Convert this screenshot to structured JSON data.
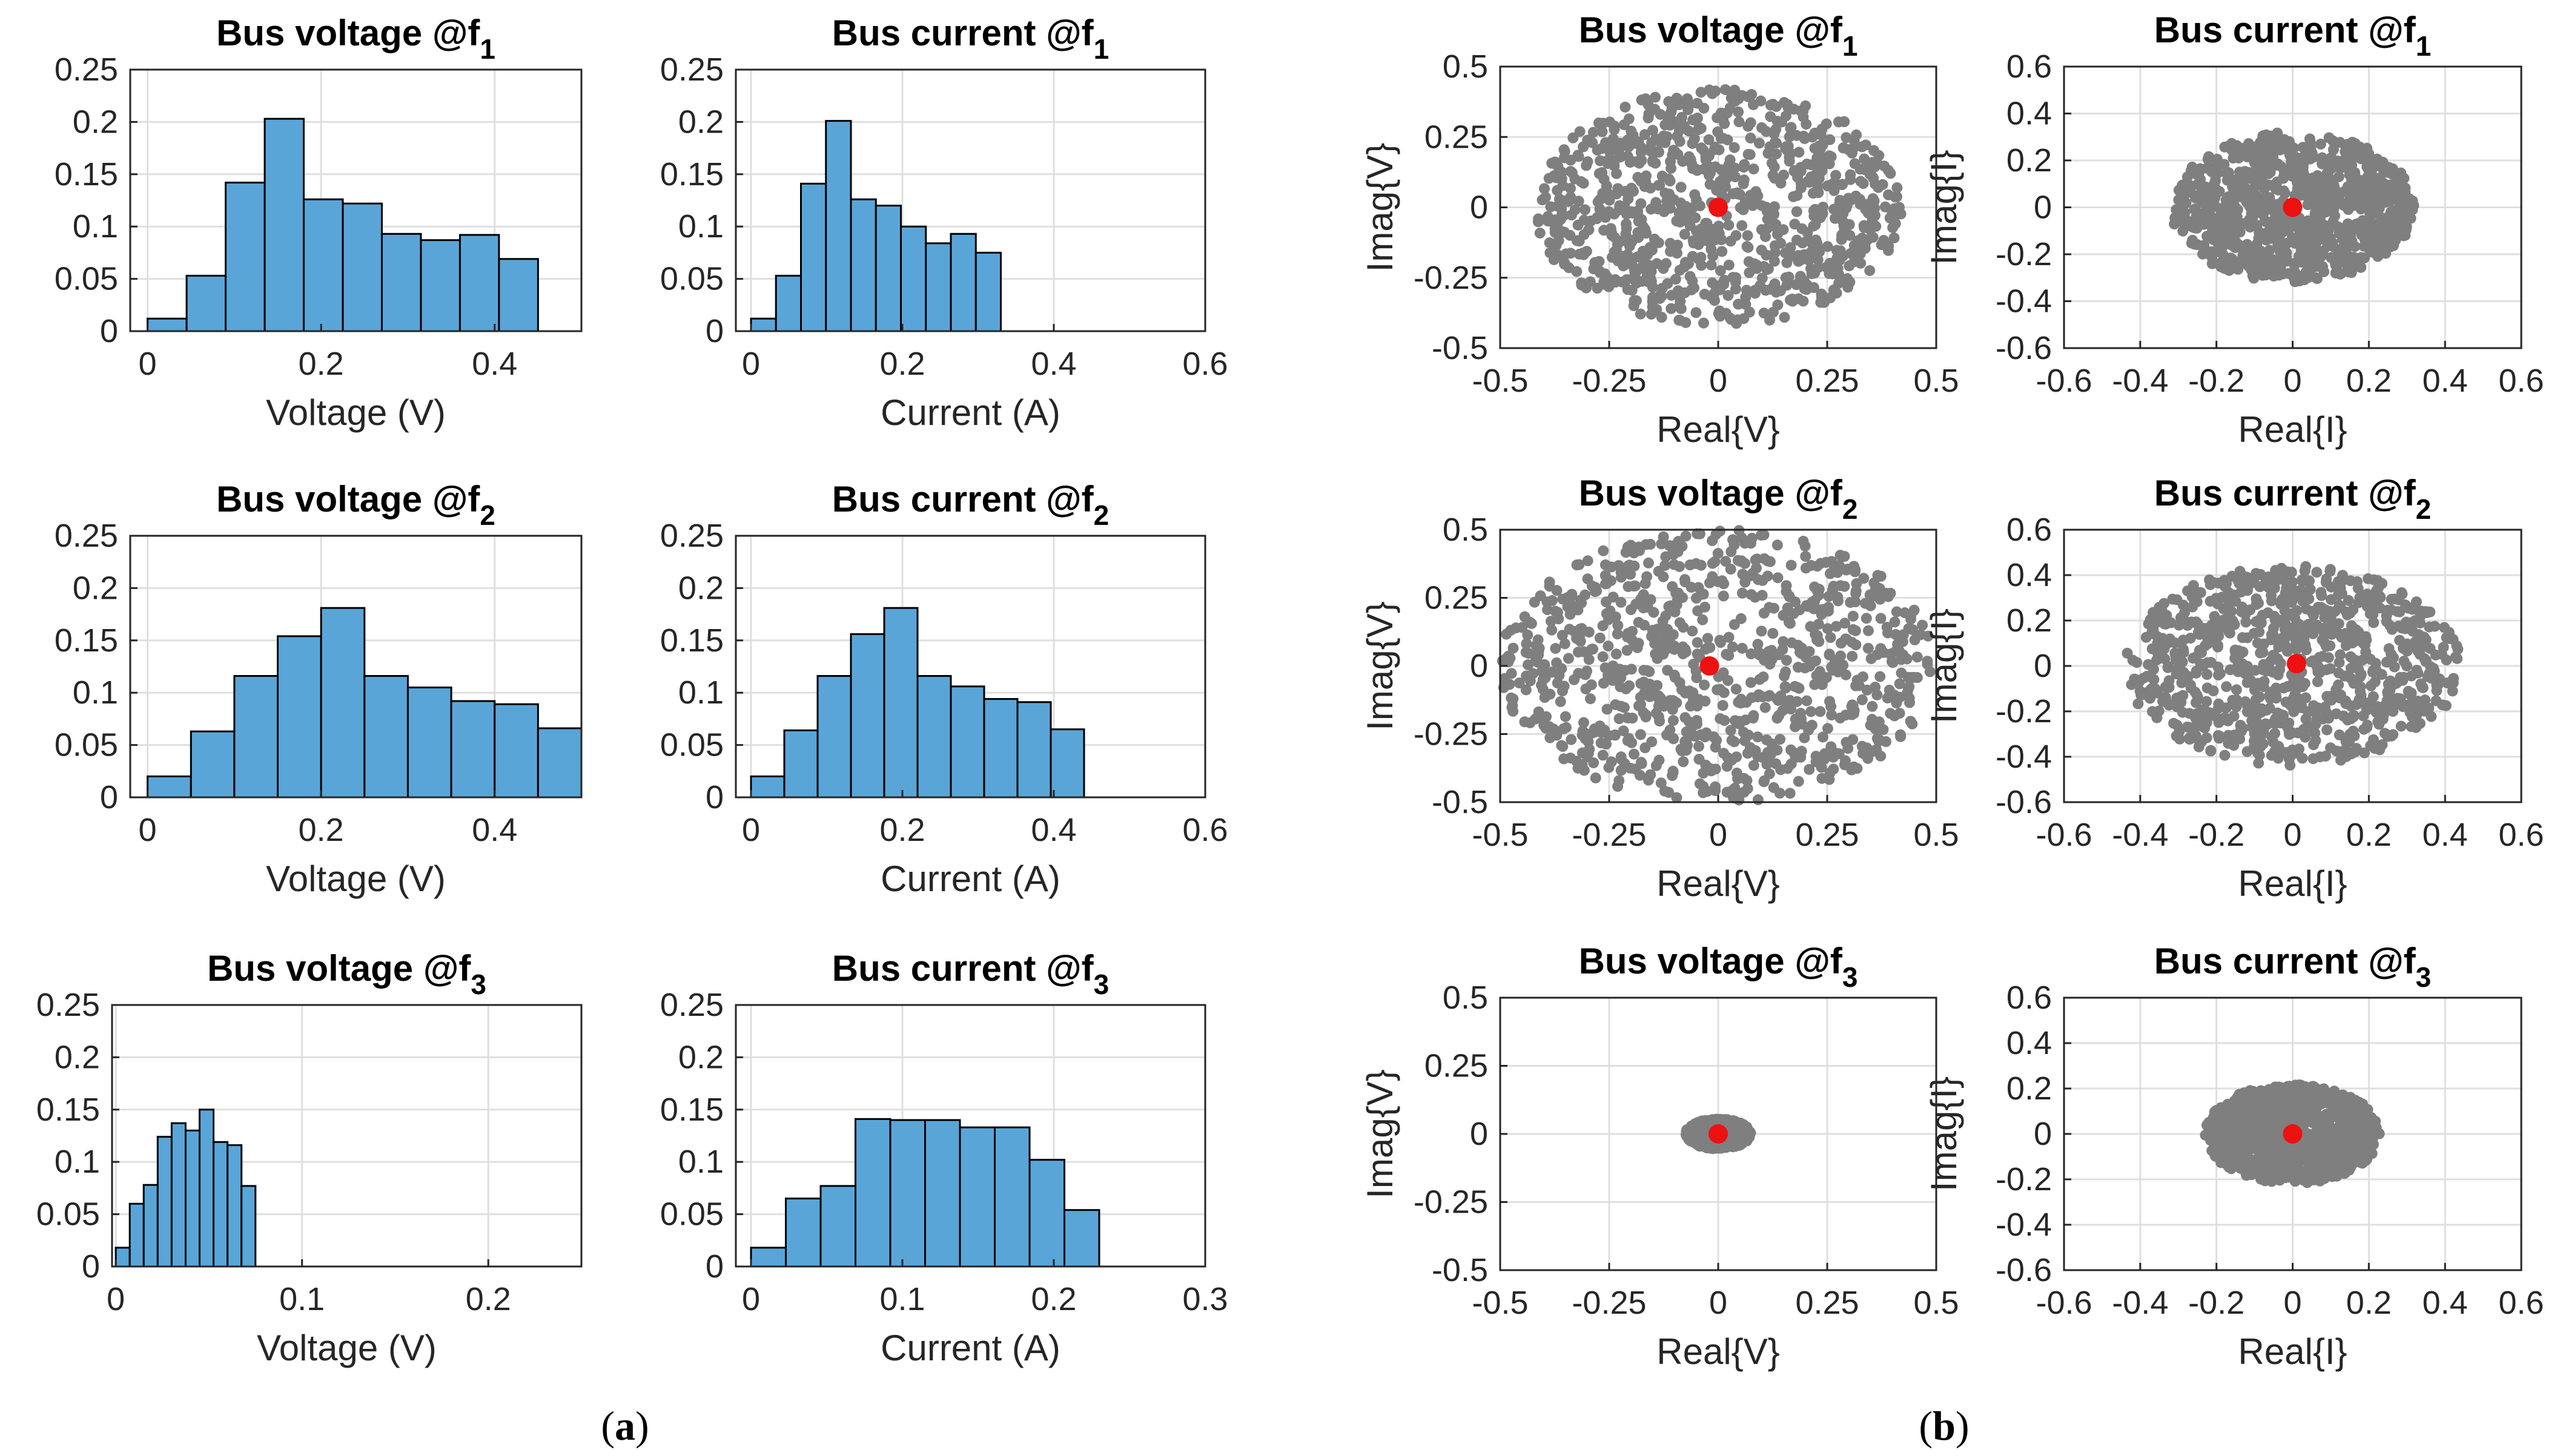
{
  "colors": {
    "bar_fill": "#5aa5d8",
    "bar_edge": "#000000",
    "scatter_point": "#7f7f7f",
    "centroid_point": "#ee1111",
    "axis": "#262626",
    "grid": "#dfdfdf"
  },
  "panel_labels": {
    "a": {
      "open": "(",
      "letter": "a",
      "close": ")"
    },
    "b": {
      "open": "(",
      "letter": "b",
      "close": ")"
    }
  },
  "chart_data": [
    {
      "id": "hist-voltage-f1",
      "type": "bar",
      "title": "Bus voltage @f",
      "title_sub": "1",
      "xlabel": "Voltage (V)",
      "ylabel": "",
      "xlim": [
        -0.02,
        0.5
      ],
      "ylim": [
        0,
        0.25
      ],
      "xticks": [
        0,
        0.2,
        0.4
      ],
      "xtick_labels": [
        "0",
        "0.2",
        "0.4"
      ],
      "yticks": [
        0,
        0.05,
        0.1,
        0.15,
        0.2,
        0.25
      ],
      "ytick_labels": [
        "0",
        "0.05",
        "0.1",
        "0.15",
        "0.2",
        "0.25"
      ],
      "bin_edges": [
        0,
        0.045,
        0.09,
        0.135,
        0.18,
        0.225,
        0.27,
        0.315,
        0.36,
        0.405,
        0.45
      ],
      "values": [
        0.012,
        0.053,
        0.142,
        0.203,
        0.126,
        0.122,
        0.093,
        0.087,
        0.092,
        0.069
      ]
    },
    {
      "id": "hist-current-f1",
      "type": "bar",
      "title": "Bus current @f",
      "title_sub": "1",
      "xlabel": "Current (A)",
      "ylabel": "",
      "xlim": [
        -0.02,
        0.6
      ],
      "ylim": [
        0,
        0.25
      ],
      "xticks": [
        0,
        0.2,
        0.4,
        0.6
      ],
      "xtick_labels": [
        "0",
        "0.2",
        "0.4",
        "0.6"
      ],
      "yticks": [
        0,
        0.05,
        0.1,
        0.15,
        0.2,
        0.25
      ],
      "ytick_labels": [
        "0",
        "0.05",
        "0.1",
        "0.15",
        "0.2",
        "0.25"
      ],
      "bin_edges": [
        0,
        0.033,
        0.066,
        0.099,
        0.132,
        0.165,
        0.198,
        0.231,
        0.264,
        0.297,
        0.33
      ],
      "values": [
        0.012,
        0.053,
        0.141,
        0.201,
        0.126,
        0.12,
        0.1,
        0.084,
        0.093,
        0.075
      ]
    },
    {
      "id": "hist-voltage-f2",
      "type": "bar",
      "title": "Bus voltage @f",
      "title_sub": "2",
      "xlabel": "Voltage (V)",
      "ylabel": "",
      "xlim": [
        -0.02,
        0.5
      ],
      "ylim": [
        0,
        0.25
      ],
      "xticks": [
        0,
        0.2,
        0.4
      ],
      "xtick_labels": [
        "0",
        "0.2",
        "0.4"
      ],
      "yticks": [
        0,
        0.05,
        0.1,
        0.15,
        0.2,
        0.25
      ],
      "ytick_labels": [
        "0",
        "0.05",
        "0.1",
        "0.15",
        "0.2",
        "0.25"
      ],
      "bin_edges": [
        0,
        0.05,
        0.1,
        0.15,
        0.2,
        0.25,
        0.3,
        0.35,
        0.4,
        0.45,
        0.5
      ],
      "values": [
        0.02,
        0.063,
        0.116,
        0.154,
        0.181,
        0.116,
        0.105,
        0.092,
        0.089,
        0.066
      ]
    },
    {
      "id": "hist-current-f2",
      "type": "bar",
      "title": "Bus current @f",
      "title_sub": "2",
      "xlabel": "Current (A)",
      "ylabel": "",
      "xlim": [
        -0.02,
        0.6
      ],
      "ylim": [
        0,
        0.25
      ],
      "xticks": [
        0,
        0.2,
        0.4,
        0.6
      ],
      "xtick_labels": [
        "0",
        "0.2",
        "0.4",
        "0.6"
      ],
      "yticks": [
        0,
        0.05,
        0.1,
        0.15,
        0.2,
        0.25
      ],
      "ytick_labels": [
        "0",
        "0.05",
        "0.1",
        "0.15",
        "0.2",
        "0.25"
      ],
      "bin_edges": [
        0,
        0.044,
        0.088,
        0.132,
        0.176,
        0.22,
        0.264,
        0.308,
        0.352,
        0.396,
        0.44
      ],
      "values": [
        0.02,
        0.064,
        0.116,
        0.156,
        0.181,
        0.116,
        0.106,
        0.094,
        0.091,
        0.065
      ]
    },
    {
      "id": "hist-voltage-f3",
      "type": "bar",
      "title": "Bus voltage @f",
      "title_sub": "3",
      "xlabel": "Voltage (V)",
      "ylabel": "",
      "xlim": [
        -0.002,
        0.25
      ],
      "ylim": [
        0,
        0.25
      ],
      "xticks": [
        0,
        0.1,
        0.2
      ],
      "xtick_labels": [
        "0",
        "0.1",
        "0.2"
      ],
      "yticks": [
        0,
        0.05,
        0.1,
        0.15,
        0.2,
        0.25
      ],
      "ytick_labels": [
        "0",
        "0.05",
        "0.1",
        "0.15",
        "0.2",
        "0.25"
      ],
      "bin_edges": [
        0,
        0.0075,
        0.015,
        0.0225,
        0.03,
        0.0375,
        0.045,
        0.0525,
        0.06,
        0.0675,
        0.075
      ],
      "values": [
        0.018,
        0.06,
        0.078,
        0.124,
        0.137,
        0.13,
        0.15,
        0.119,
        0.116,
        0.077
      ]
    },
    {
      "id": "hist-current-f3",
      "type": "bar",
      "title": "Bus current @f",
      "title_sub": "3",
      "xlabel": "Current (A)",
      "ylabel": "",
      "xlim": [
        -0.01,
        0.3
      ],
      "ylim": [
        0,
        0.25
      ],
      "xticks": [
        0,
        0.1,
        0.2,
        0.3
      ],
      "xtick_labels": [
        "0",
        "0.1",
        "0.2",
        "0.3"
      ],
      "yticks": [
        0,
        0.05,
        0.1,
        0.15,
        0.2,
        0.25
      ],
      "ytick_labels": [
        "0",
        "0.05",
        "0.1",
        "0.15",
        "0.2",
        "0.25"
      ],
      "bin_edges": [
        0,
        0.023,
        0.046,
        0.069,
        0.092,
        0.115,
        0.138,
        0.161,
        0.184,
        0.207,
        0.23
      ],
      "values": [
        0.018,
        0.065,
        0.077,
        0.141,
        0.14,
        0.14,
        0.133,
        0.133,
        0.102,
        0.054
      ]
    },
    {
      "id": "scatter-voltage-f1",
      "type": "scatter",
      "title": "Bus voltage @f",
      "title_sub": "1",
      "xlabel": "Real{V}",
      "ylabel": "Imag{V}",
      "xlim": [
        -0.5,
        0.5
      ],
      "ylim": [
        -0.5,
        0.5
      ],
      "xticks": [
        -0.5,
        -0.25,
        0,
        0.25,
        0.5
      ],
      "xtick_labels": [
        "-0.5",
        "-0.25",
        "0",
        "0.25",
        "0.5"
      ],
      "yticks": [
        -0.5,
        -0.25,
        0,
        0.25,
        0.5
      ],
      "ytick_labels": [
        "-0.5",
        "-0.25",
        "0",
        "0.25",
        "0.5"
      ],
      "cloud": {
        "count": 900,
        "radius_x": 0.42,
        "radius_y": 0.42,
        "seed": 11
      },
      "centroid": [
        0,
        0
      ]
    },
    {
      "id": "scatter-current-f1",
      "type": "scatter",
      "title": "Bus current @f",
      "title_sub": "1",
      "xlabel": "Real{I}",
      "ylabel": "Imag{I}",
      "xlim": [
        -0.6,
        0.6
      ],
      "ylim": [
        -0.6,
        0.6
      ],
      "xticks": [
        -0.6,
        -0.4,
        -0.2,
        0,
        0.2,
        0.4,
        0.6
      ],
      "xtick_labels": [
        "-0.6",
        "-0.4",
        "-0.2",
        "0",
        "0.2",
        "0.4",
        "0.6"
      ],
      "yticks": [
        -0.6,
        -0.4,
        -0.2,
        0,
        0.2,
        0.4,
        0.6
      ],
      "ytick_labels": [
        "-0.6",
        "-0.4",
        "-0.2",
        "0",
        "0.2",
        "0.4",
        "0.6"
      ],
      "cloud": {
        "count": 900,
        "radius_x": 0.32,
        "radius_y": 0.32,
        "seed": 23
      },
      "centroid": [
        0,
        0
      ]
    },
    {
      "id": "scatter-voltage-f2",
      "type": "scatter",
      "title": "Bus voltage @f",
      "title_sub": "2",
      "xlabel": "Real{V}",
      "ylabel": "Imag{V}",
      "xlim": [
        -0.5,
        0.5
      ],
      "ylim": [
        -0.5,
        0.5
      ],
      "xticks": [
        -0.5,
        -0.25,
        0,
        0.25,
        0.5
      ],
      "xtick_labels": [
        "-0.5",
        "-0.25",
        "0",
        "0.25",
        "0.5"
      ],
      "yticks": [
        -0.5,
        -0.25,
        0,
        0.25,
        0.5
      ],
      "ytick_labels": [
        "-0.5",
        "-0.25",
        "0",
        "0.25",
        "0.5"
      ],
      "cloud": {
        "count": 900,
        "radius_x": 0.5,
        "radius_y": 0.5,
        "seed": 37
      },
      "centroid": [
        -0.02,
        0
      ]
    },
    {
      "id": "scatter-current-f2",
      "type": "scatter",
      "title": "Bus current @f",
      "title_sub": "2",
      "xlabel": "Real{I}",
      "ylabel": "Imag{I}",
      "xlim": [
        -0.6,
        0.6
      ],
      "ylim": [
        -0.6,
        0.6
      ],
      "xticks": [
        -0.6,
        -0.4,
        -0.2,
        0,
        0.2,
        0.4,
        0.6
      ],
      "xtick_labels": [
        "-0.6",
        "-0.4",
        "-0.2",
        "0",
        "0.2",
        "0.4",
        "0.6"
      ],
      "yticks": [
        -0.6,
        -0.4,
        -0.2,
        0,
        0.2,
        0.4,
        0.6
      ],
      "ytick_labels": [
        "-0.6",
        "-0.4",
        "-0.2",
        "0",
        "0.2",
        "0.4",
        "0.6"
      ],
      "cloud": {
        "count": 900,
        "radius_x": 0.44,
        "radius_y": 0.44,
        "seed": 53
      },
      "centroid": [
        0.01,
        0.01
      ]
    },
    {
      "id": "scatter-voltage-f3",
      "type": "scatter",
      "title": "Bus voltage @f",
      "title_sub": "3",
      "xlabel": "Real{V}",
      "ylabel": "Imag{V}",
      "xlim": [
        -0.5,
        0.5
      ],
      "ylim": [
        -0.5,
        0.5
      ],
      "xticks": [
        -0.5,
        -0.25,
        0,
        0.25,
        0.5
      ],
      "xtick_labels": [
        "-0.5",
        "-0.25",
        "0",
        "0.25",
        "0.5"
      ],
      "yticks": [
        -0.5,
        -0.25,
        0,
        0.25,
        0.5
      ],
      "ytick_labels": [
        "-0.5",
        "-0.25",
        "0",
        "0.25",
        "0.5"
      ],
      "cloud": {
        "count": 700,
        "radius_x": 0.075,
        "radius_y": 0.055,
        "seed": 71
      },
      "centroid": [
        0,
        0
      ]
    },
    {
      "id": "scatter-current-f3",
      "type": "scatter",
      "title": "Bus current @f",
      "title_sub": "3",
      "xlabel": "Real{I}",
      "ylabel": "Imag{I}",
      "xlim": [
        -0.6,
        0.6
      ],
      "ylim": [
        -0.6,
        0.6
      ],
      "xticks": [
        -0.6,
        -0.4,
        -0.2,
        0,
        0.2,
        0.4,
        0.6
      ],
      "xtick_labels": [
        "-0.6",
        "-0.4",
        "-0.2",
        "0",
        "0.2",
        "0.4",
        "0.6"
      ],
      "yticks": [
        -0.6,
        -0.4,
        -0.2,
        0,
        0.2,
        0.4,
        0.6
      ],
      "ytick_labels": [
        "-0.6",
        "-0.4",
        "-0.2",
        "0",
        "0.2",
        "0.4",
        "0.6"
      ],
      "cloud": {
        "count": 900,
        "radius_x": 0.23,
        "radius_y": 0.22,
        "seed": 89
      },
      "centroid": [
        0,
        0
      ]
    }
  ]
}
